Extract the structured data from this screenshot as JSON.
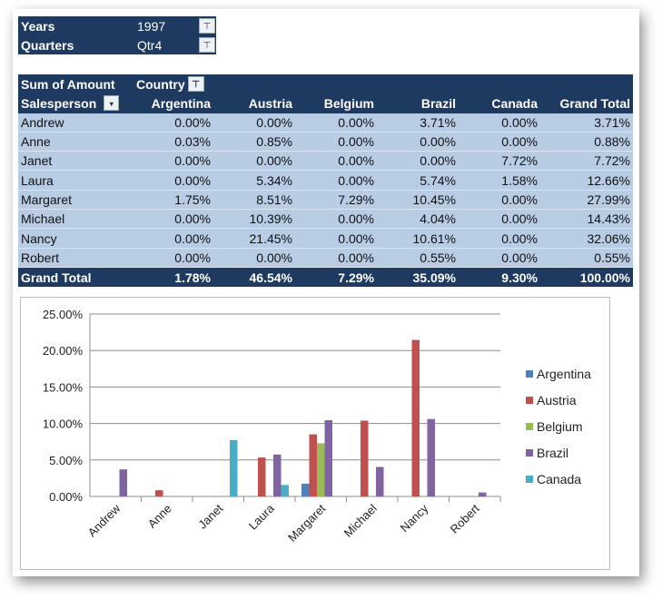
{
  "filters": [
    {
      "label": "Years",
      "value": "1997",
      "icon": "filter-icon"
    },
    {
      "label": "Quarters",
      "value": "Qtr4",
      "icon": "filter-icon"
    }
  ],
  "pivot": {
    "value_field": "Sum of Amount",
    "column_field": "Country",
    "row_field": "Salesperson",
    "columns": [
      "Argentina",
      "Austria",
      "Belgium",
      "Brazil",
      "Canada",
      "Grand Total"
    ],
    "rows": [
      {
        "name": "Andrew",
        "values": [
          "0.00%",
          "0.00%",
          "0.00%",
          "3.71%",
          "0.00%",
          "3.71%"
        ]
      },
      {
        "name": "Anne",
        "values": [
          "0.03%",
          "0.85%",
          "0.00%",
          "0.00%",
          "0.00%",
          "0.88%"
        ]
      },
      {
        "name": "Janet",
        "values": [
          "0.00%",
          "0.00%",
          "0.00%",
          "0.00%",
          "7.72%",
          "7.72%"
        ]
      },
      {
        "name": "Laura",
        "values": [
          "0.00%",
          "5.34%",
          "0.00%",
          "5.74%",
          "1.58%",
          "12.66%"
        ]
      },
      {
        "name": "Margaret",
        "values": [
          "1.75%",
          "8.51%",
          "7.29%",
          "10.45%",
          "0.00%",
          "27.99%"
        ]
      },
      {
        "name": "Michael",
        "values": [
          "0.00%",
          "10.39%",
          "0.00%",
          "4.04%",
          "0.00%",
          "14.43%"
        ]
      },
      {
        "name": "Nancy",
        "values": [
          "0.00%",
          "21.45%",
          "0.00%",
          "10.61%",
          "0.00%",
          "32.06%"
        ]
      },
      {
        "name": "Robert",
        "values": [
          "0.00%",
          "0.00%",
          "0.00%",
          "0.55%",
          "0.00%",
          "0.55%"
        ]
      }
    ],
    "total": {
      "name": "Grand Total",
      "values": [
        "1.78%",
        "46.54%",
        "7.29%",
        "35.09%",
        "9.30%",
        "100.00%"
      ]
    }
  },
  "chart_data": {
    "type": "bar",
    "title": "",
    "xlabel": "",
    "ylabel": "",
    "categories": [
      "Andrew",
      "Anne",
      "Janet",
      "Laura",
      "Margaret",
      "Michael",
      "Nancy",
      "Robert"
    ],
    "ylim": [
      0,
      25
    ],
    "yticks": [
      "0.00%",
      "5.00%",
      "10.00%",
      "15.00%",
      "20.00%",
      "25.00%"
    ],
    "grid": true,
    "legend": "right",
    "series": [
      {
        "name": "Argentina",
        "color": "#4f81bd",
        "values": [
          0,
          0.03,
          0,
          0,
          1.75,
          0,
          0,
          0
        ]
      },
      {
        "name": "Austria",
        "color": "#c0504d",
        "values": [
          0,
          0.85,
          0,
          5.34,
          8.51,
          10.39,
          21.45,
          0
        ]
      },
      {
        "name": "Belgium",
        "color": "#9bbb59",
        "values": [
          0,
          0,
          0,
          0,
          7.29,
          0,
          0,
          0
        ]
      },
      {
        "name": "Brazil",
        "color": "#8064a2",
        "values": [
          3.71,
          0,
          0,
          5.74,
          10.45,
          4.04,
          10.61,
          0.55
        ]
      },
      {
        "name": "Canada",
        "color": "#4bacc6",
        "values": [
          0,
          0,
          7.72,
          1.58,
          0,
          0,
          0,
          0
        ]
      }
    ]
  }
}
